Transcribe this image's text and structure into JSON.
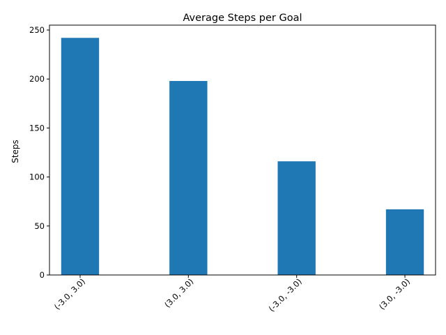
{
  "chart_data": {
    "type": "bar",
    "title": "Average Steps per Goal",
    "xlabel": "",
    "ylabel": "Steps",
    "categories": [
      "(-3.0, 3.0)",
      "(3.0, 3.0)",
      "(-3.0, -3.0)",
      "(3.0, -3.0)"
    ],
    "values": [
      242,
      198,
      116,
      67
    ],
    "ylim": [
      0,
      255
    ],
    "yticks": [
      0,
      50,
      100,
      150,
      200,
      250
    ],
    "grid": false,
    "bar_color": "#1f77b4"
  }
}
